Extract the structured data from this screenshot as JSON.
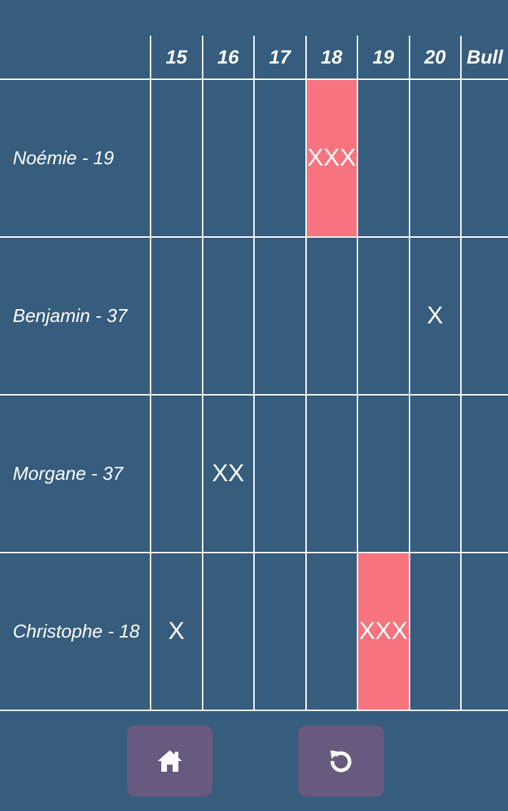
{
  "columns": [
    "15",
    "16",
    "17",
    "18",
    "19",
    "20",
    "Bull"
  ],
  "players": [
    {
      "label": "Noémie - 19",
      "marks": [
        "",
        "",
        "",
        "XXX",
        "",
        "",
        ""
      ],
      "closed": [
        false,
        false,
        false,
        true,
        false,
        false,
        false
      ]
    },
    {
      "label": "Benjamin - 37",
      "marks": [
        "",
        "",
        "",
        "",
        "",
        "X",
        ""
      ],
      "closed": [
        false,
        false,
        false,
        false,
        false,
        false,
        false
      ]
    },
    {
      "label": "Morgane - 37",
      "marks": [
        "",
        "XX",
        "",
        "",
        "",
        "",
        ""
      ],
      "closed": [
        false,
        false,
        false,
        false,
        false,
        false,
        false
      ]
    },
    {
      "label": "Christophe - 18",
      "marks": [
        "X",
        "",
        "",
        "",
        "XXX",
        "",
        ""
      ],
      "closed": [
        false,
        false,
        false,
        false,
        true,
        false,
        false
      ]
    }
  ],
  "footer": {
    "home_icon": "home-icon",
    "undo_icon": "undo-icon"
  },
  "colors": {
    "background": "#365d7e",
    "closed_cell": "#f7747f",
    "button": "#685a7e",
    "grid": "#ffffff"
  }
}
